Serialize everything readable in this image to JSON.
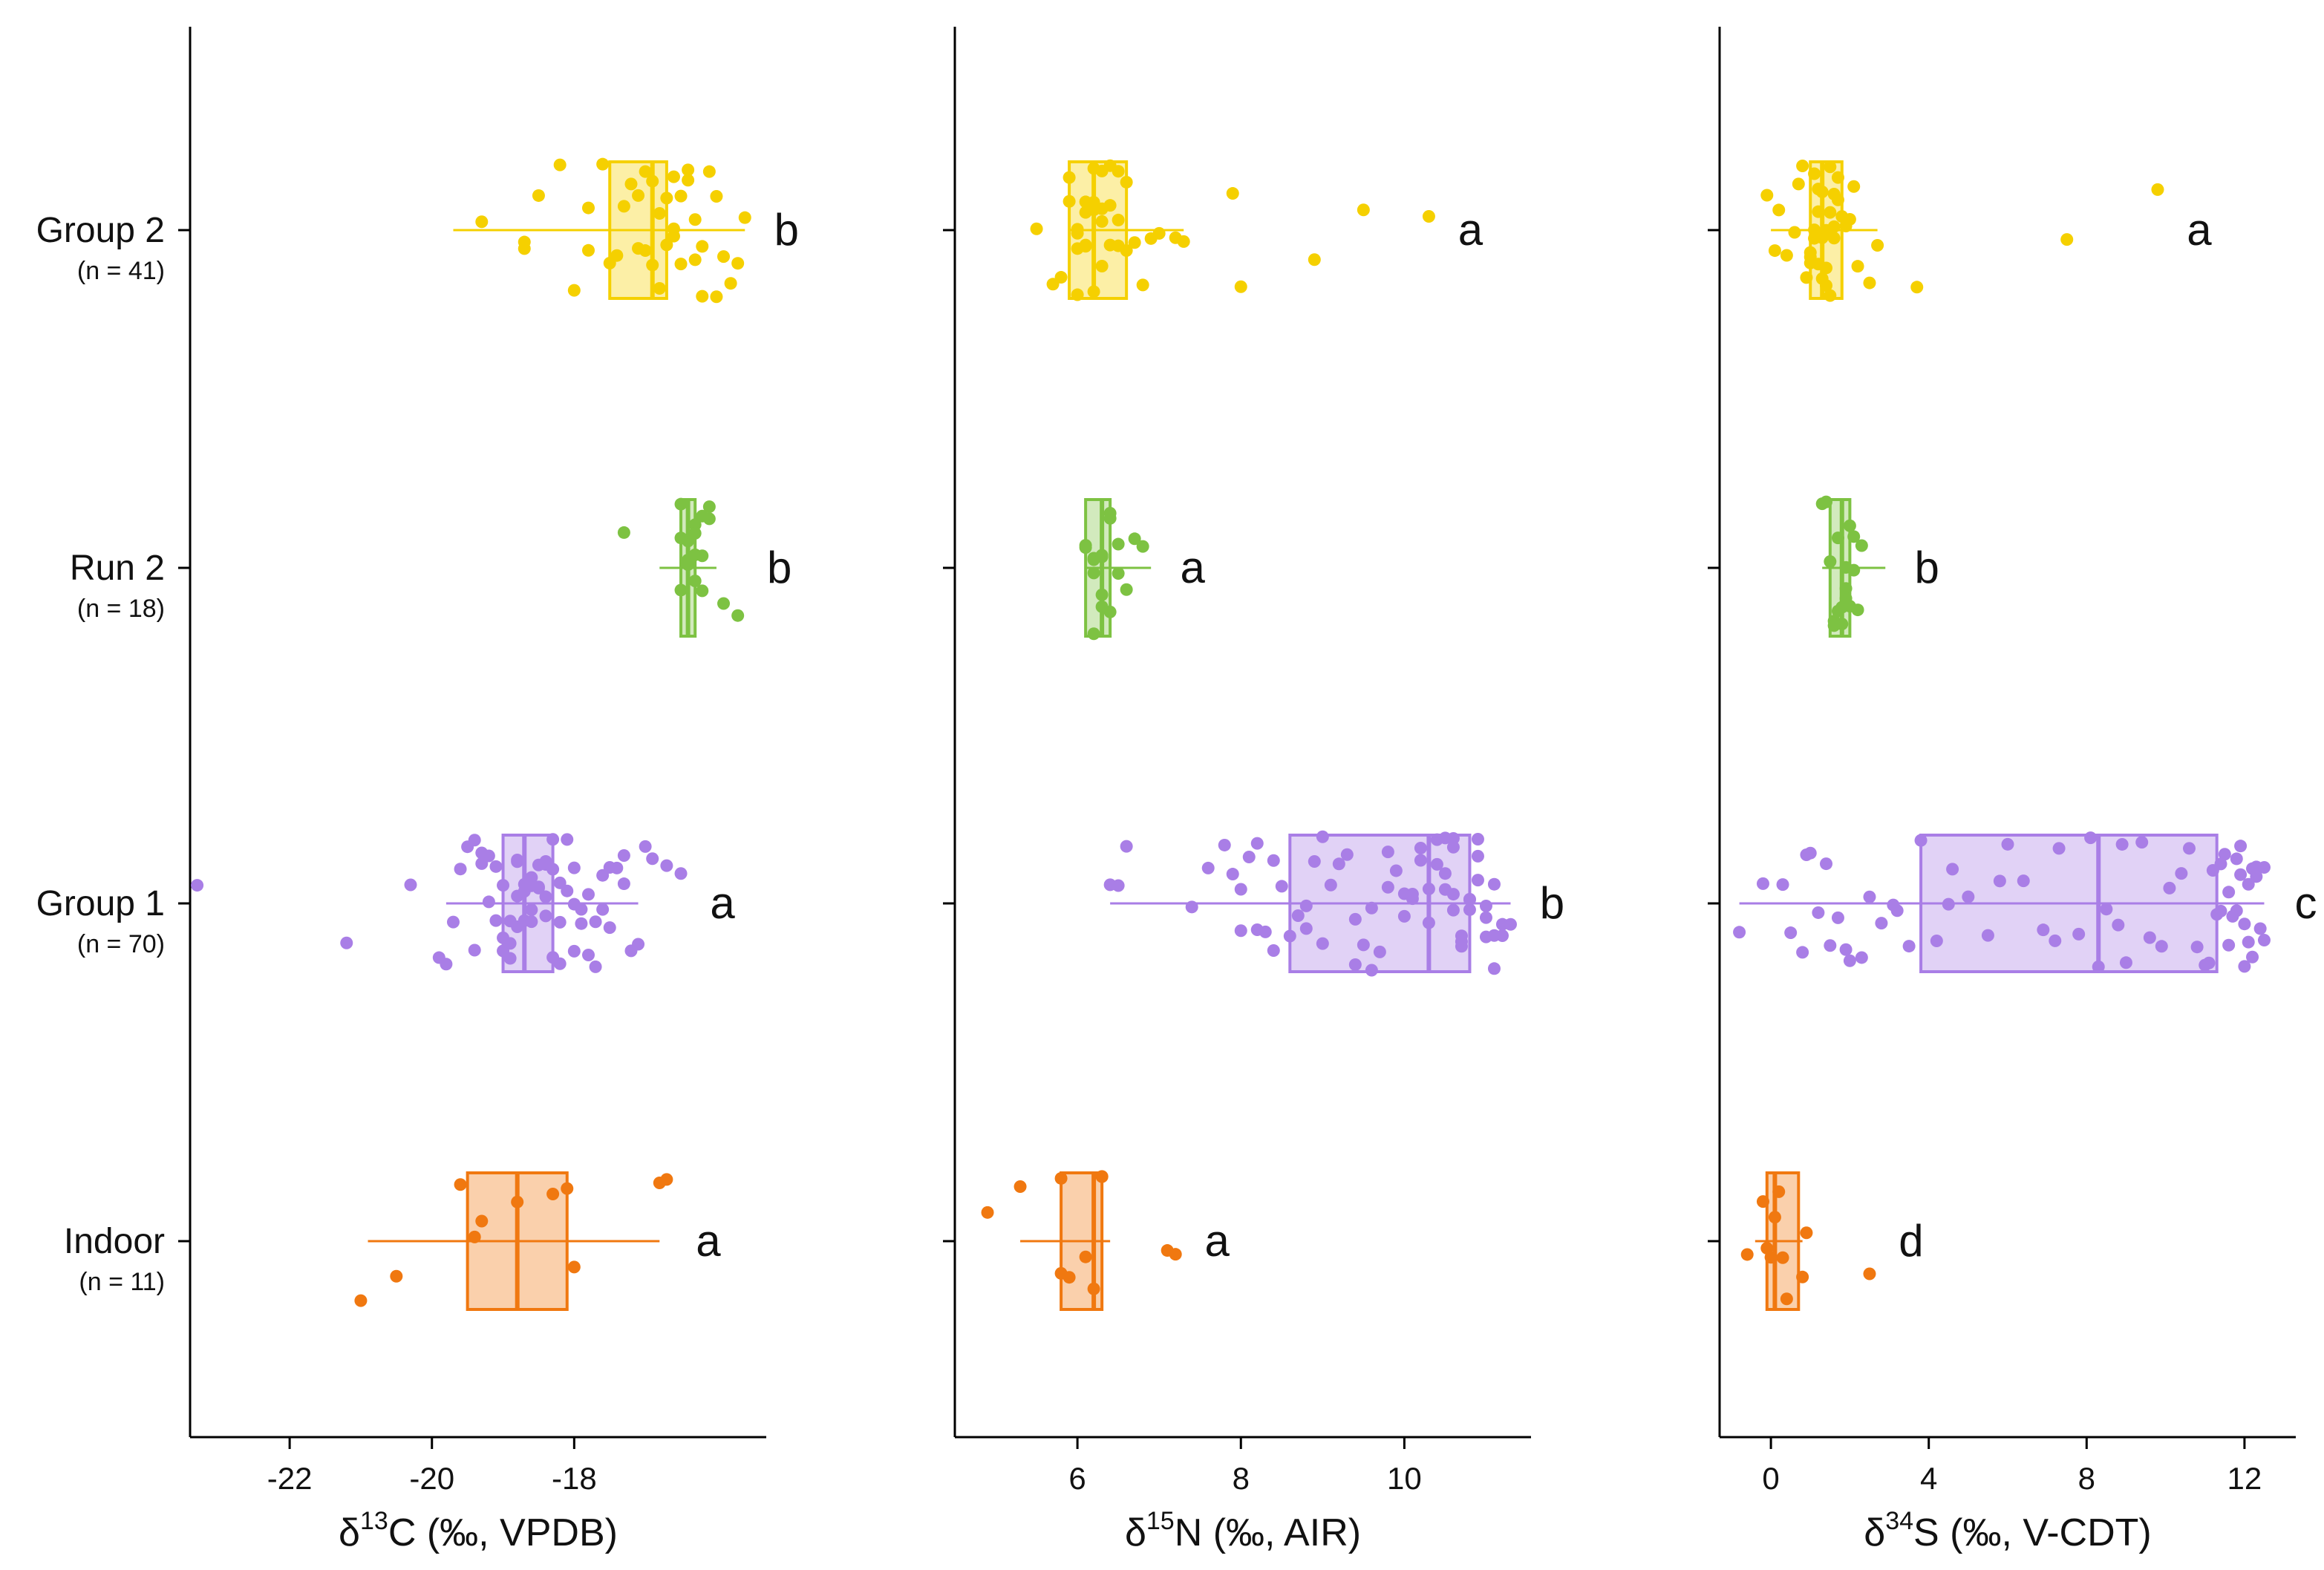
{
  "colors": {
    "Group 2": "#f5d000",
    "Run 2": "#7dc242",
    "Group 1": "#a97ee6",
    "Indoor": "#f07810"
  },
  "chart_data": [
    {
      "type": "box",
      "orientation": "horizontal",
      "title": "",
      "xlabel": {
        "prefix": "δ",
        "sup": "13",
        "rest": "C (‰, VPDB)"
      },
      "xlim": [
        -23.4,
        -15.3
      ],
      "xticks": [
        -22,
        -20,
        -18
      ],
      "groups": [
        {
          "name": "Group 2",
          "n_label": "(n =  41)",
          "letter": "b",
          "whisker_low": -19.7,
          "q1": -17.5,
          "median": -16.9,
          "q3": -16.7,
          "whisker_high": -15.6,
          "points": [
            -19.3,
            -18.7,
            -18.0,
            -17.8,
            -17.4,
            -17.2,
            -17.1,
            -17.0,
            -16.9,
            -16.8,
            -16.7,
            -16.6,
            -16.5,
            -16.4,
            -16.3,
            -16.2,
            -16.1,
            -15.9,
            -15.8,
            -15.7,
            -15.6,
            -16.6,
            -16.9,
            -17.0,
            -17.3,
            -18.2,
            -18.7,
            -17.6,
            -16.4,
            -16.0,
            -17.1,
            -16.5,
            -16.8,
            -16.2,
            -17.5,
            -16.7,
            -16.0,
            -17.8,
            -18.5,
            -16.3,
            -16.6
          ]
        },
        {
          "name": "Run 2",
          "n_label": "(n =  18)",
          "letter": "b",
          "whisker_low": -16.8,
          "q1": -16.5,
          "median": -16.4,
          "q3": -16.3,
          "whisker_high": -16.0,
          "points": [
            -17.3,
            -16.5,
            -16.4,
            -16.3,
            -16.2,
            -16.1,
            -16.5,
            -16.4,
            -16.3,
            -16.2,
            -16.4,
            -16.3,
            -16.5,
            -16.2,
            -16.1,
            -15.9,
            -15.7,
            -16.3
          ]
        },
        {
          "name": "Group 1",
          "n_label": "(n =  70)",
          "letter": "a",
          "whisker_low": -19.8,
          "q1": -19.0,
          "median": -18.7,
          "q3": -18.3,
          "whisker_high": -17.1,
          "points": [
            -23.3,
            -21.2,
            -20.3,
            -19.9,
            -19.8,
            -19.6,
            -19.5,
            -19.4,
            -19.3,
            -19.2,
            -19.1,
            -19.0,
            -19.0,
            -18.9,
            -18.9,
            -18.8,
            -18.8,
            -18.7,
            -18.7,
            -18.6,
            -18.6,
            -18.5,
            -18.5,
            -18.4,
            -18.4,
            -18.3,
            -18.3,
            -18.2,
            -18.2,
            -18.1,
            -18.0,
            -17.9,
            -17.8,
            -17.7,
            -17.6,
            -17.5,
            -17.4,
            -17.3,
            -17.2,
            -17.1,
            -17.0,
            -16.9,
            -16.7,
            -16.5,
            -19.4,
            -19.2,
            -19.0,
            -18.8,
            -18.6,
            -18.4,
            -18.2,
            -18.0,
            -17.8,
            -17.6,
            -19.1,
            -18.9,
            -18.7,
            -18.5,
            -18.3,
            -18.1,
            -17.9,
            -17.7,
            -19.3,
            -18.6,
            -18.4,
            -18.0,
            -17.5,
            -17.3,
            -19.7,
            -18.8
          ]
        },
        {
          "name": "Indoor",
          "n_label": "(n =  11)",
          "letter": "a",
          "whisker_low": -20.9,
          "q1": -19.5,
          "median": -18.8,
          "q3": -18.1,
          "whisker_high": -16.8,
          "points": [
            -21.0,
            -20.5,
            -19.6,
            -19.4,
            -19.3,
            -18.8,
            -18.3,
            -18.1,
            -18.0,
            -16.8,
            -16.7
          ]
        }
      ]
    },
    {
      "type": "box",
      "orientation": "horizontal",
      "title": "",
      "xlabel": {
        "prefix": "δ",
        "sup": "15",
        "rest": "N (‰, AIR)"
      },
      "xlim": [
        4.5,
        11.55
      ],
      "xticks": [
        6,
        8,
        10
      ],
      "groups": [
        {
          "name": "Group 2",
          "n_label": "(n =  41)",
          "letter": "a",
          "whisker_low": 5.9,
          "q1": 5.9,
          "median": 6.2,
          "q3": 6.6,
          "whisker_high": 7.3,
          "points": [
            5.5,
            5.7,
            5.8,
            5.9,
            5.9,
            6.0,
            6.0,
            6.0,
            6.1,
            6.1,
            6.1,
            6.2,
            6.2,
            6.2,
            6.2,
            6.3,
            6.3,
            6.3,
            6.4,
            6.4,
            6.4,
            6.5,
            6.5,
            6.6,
            6.6,
            6.7,
            6.8,
            6.9,
            7.0,
            7.2,
            7.3,
            7.9,
            8.0,
            8.9,
            9.5,
            10.3,
            6.1,
            6.3,
            6.0,
            6.5,
            6.2
          ]
        },
        {
          "name": "Run 2",
          "n_label": "(n =  18)",
          "letter": "a",
          "whisker_low": 6.1,
          "q1": 6.1,
          "median": 6.3,
          "q3": 6.4,
          "whisker_high": 6.9,
          "points": [
            6.1,
            6.1,
            6.2,
            6.2,
            6.2,
            6.3,
            6.3,
            6.3,
            6.4,
            6.4,
            6.4,
            6.5,
            6.5,
            6.6,
            6.7,
            6.8,
            6.3,
            6.2
          ]
        },
        {
          "name": "Group 1",
          "n_label": "(n =  70)",
          "letter": "b",
          "whisker_low": 6.4,
          "q1": 8.6,
          "median": 10.3,
          "q3": 10.8,
          "whisker_high": 11.3,
          "points": [
            6.4,
            6.5,
            6.6,
            7.4,
            7.6,
            7.8,
            7.9,
            8.0,
            8.1,
            8.2,
            8.3,
            8.4,
            8.5,
            8.6,
            8.7,
            8.8,
            8.9,
            9.0,
            9.1,
            9.2,
            9.3,
            9.4,
            9.5,
            9.6,
            9.7,
            9.8,
            9.9,
            10.0,
            10.1,
            10.2,
            10.3,
            10.4,
            10.5,
            10.6,
            10.7,
            10.8,
            10.9,
            11.0,
            11.1,
            11.2,
            11.3,
            10.5,
            10.6,
            10.7,
            10.8,
            10.9,
            11.0,
            11.1,
            10.4,
            10.2,
            10.0,
            9.8,
            9.0,
            8.8,
            8.4,
            8.2,
            8.0,
            10.6,
            10.8,
            11.0,
            11.2,
            10.9,
            10.7,
            10.5,
            10.3,
            10.1,
            9.6,
            9.4,
            11.1,
            10.6
          ]
        },
        {
          "name": "Indoor",
          "n_label": "(n =  11)",
          "letter": "a",
          "whisker_low": 5.3,
          "q1": 5.8,
          "median": 6.2,
          "q3": 6.3,
          "whisker_high": 6.4,
          "points": [
            4.9,
            5.3,
            5.8,
            5.8,
            5.9,
            6.1,
            6.2,
            6.3,
            6.3,
            7.1,
            7.2
          ]
        }
      ]
    },
    {
      "type": "box",
      "orientation": "horizontal",
      "title": "",
      "xlabel": {
        "prefix": "δ",
        "sup": "34",
        "rest": "S (‰, V-CDT)"
      },
      "xlim": [
        -1.3,
        13.3
      ],
      "xticks": [
        0,
        4,
        8,
        12
      ],
      "groups": [
        {
          "name": "Group 2",
          "n_label": "(n =  41)",
          "letter": "a",
          "whisker_low": 0.0,
          "q1": 1.0,
          "median": 1.3,
          "q3": 1.8,
          "whisker_high": 2.7,
          "points": [
            -0.1,
            0.1,
            0.2,
            0.4,
            0.6,
            0.8,
            0.9,
            1.0,
            1.0,
            1.1,
            1.1,
            1.2,
            1.2,
            1.3,
            1.3,
            1.4,
            1.4,
            1.5,
            1.5,
            1.6,
            1.6,
            1.7,
            1.7,
            1.8,
            1.9,
            2.0,
            2.1,
            2.2,
            2.5,
            2.7,
            3.7,
            7.5,
            9.8,
            1.2,
            1.4,
            1.0,
            1.6,
            1.3,
            0.7,
            1.1,
            1.5
          ]
        },
        {
          "name": "Run 2",
          "n_label": "(n =  18)",
          "letter": "b",
          "whisker_low": 1.3,
          "q1": 1.5,
          "median": 1.8,
          "q3": 2.0,
          "whisker_high": 2.9,
          "points": [
            1.3,
            1.4,
            1.5,
            1.6,
            1.7,
            1.7,
            1.8,
            1.8,
            1.9,
            1.9,
            2.0,
            2.0,
            2.1,
            2.1,
            2.2,
            2.3,
            1.6,
            1.9
          ]
        },
        {
          "name": "Group 1",
          "n_label": "(n =  70)",
          "letter": "c",
          "whisker_low": -0.8,
          "q1": 3.8,
          "median": 8.3,
          "q3": 11.3,
          "whisker_high": 12.5,
          "points": [
            -0.8,
            -0.2,
            0.3,
            0.5,
            0.8,
            1.0,
            1.2,
            1.4,
            1.5,
            1.7,
            2.0,
            2.3,
            2.8,
            3.1,
            3.5,
            3.8,
            4.2,
            4.6,
            5.0,
            5.5,
            6.0,
            6.4,
            6.9,
            7.3,
            7.8,
            8.1,
            8.3,
            8.5,
            8.9,
            9.4,
            9.9,
            10.4,
            10.8,
            11.0,
            11.2,
            11.3,
            11.4,
            11.5,
            11.6,
            11.7,
            11.8,
            11.9,
            12.0,
            12.1,
            12.2,
            12.3,
            12.4,
            12.5,
            4.5,
            5.8,
            7.2,
            9.0,
            10.1,
            11.1,
            11.9,
            12.3,
            3.2,
            2.5,
            1.9,
            0.9,
            8.8,
            9.6,
            10.6,
            11.4,
            12.0,
            11.6,
            11.8,
            12.2,
            12.5,
            12.1
          ]
        },
        {
          "name": "Indoor",
          "n_label": "(n =  11)",
          "letter": "d",
          "whisker_low": -0.4,
          "q1": -0.1,
          "median": 0.1,
          "q3": 0.7,
          "whisker_high": 0.8,
          "points": [
            -0.6,
            -0.2,
            -0.1,
            0.0,
            0.1,
            0.2,
            0.3,
            0.4,
            0.8,
            0.9,
            2.5
          ]
        }
      ]
    }
  ]
}
